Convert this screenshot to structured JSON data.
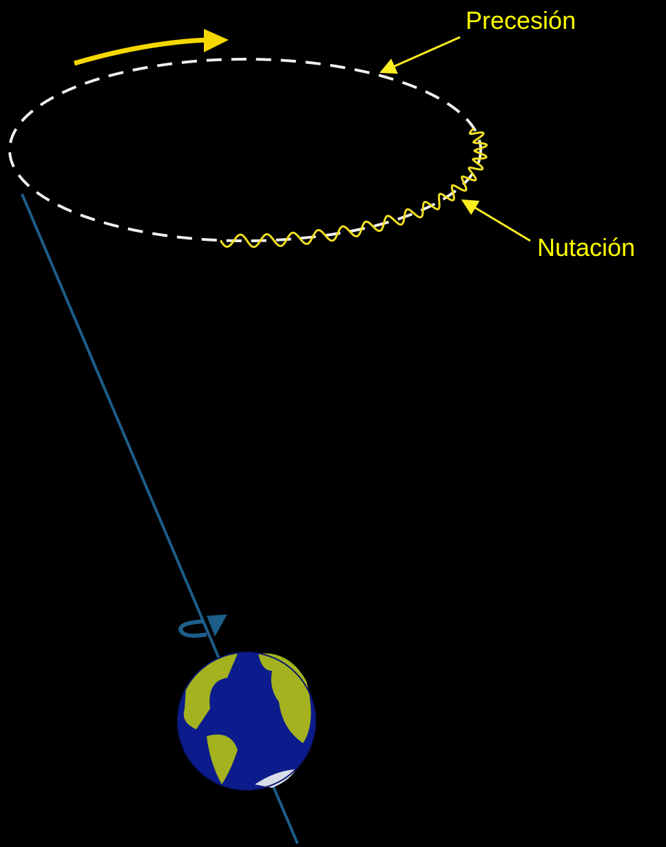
{
  "labels": {
    "precession": "Precesión",
    "nutation": "Nutación"
  }
}
